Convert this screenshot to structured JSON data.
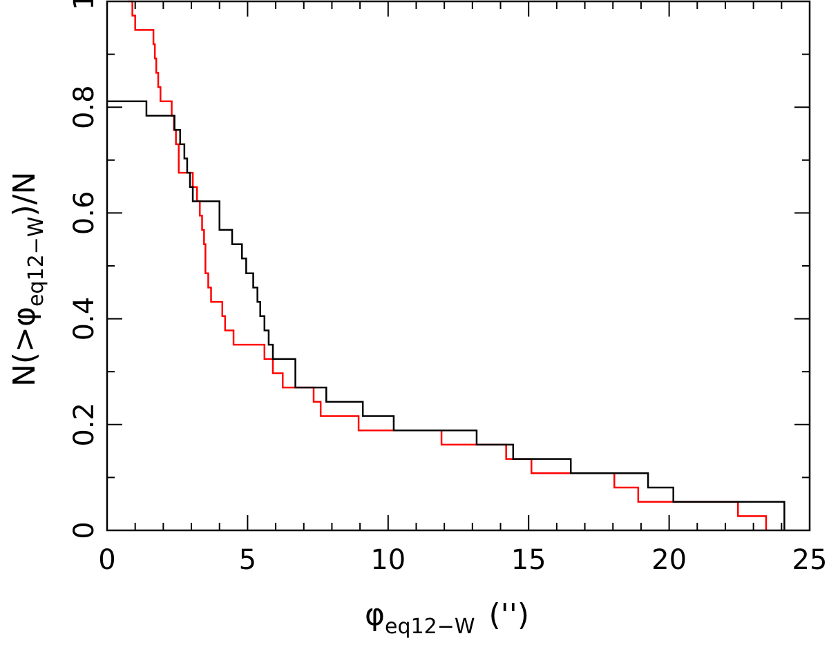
{
  "chart_data": {
    "type": "line",
    "step": true,
    "xlabel_main": "φ",
    "xlabel_sub": "eq12−W",
    "xlabel_unit": "('')",
    "ylabel_prefix": "N(>φ",
    "ylabel_sub": "eq12−W",
    "ylabel_suffix": ")/N",
    "xlim": [
      0,
      25
    ],
    "ylim": [
      0,
      1
    ],
    "xticks_major": [
      0,
      5,
      10,
      15,
      20,
      25
    ],
    "xtick_labels": [
      "0",
      "5",
      "10",
      "15",
      "20",
      "25"
    ],
    "xticks_minor": [
      1,
      2,
      3,
      4,
      6,
      7,
      8,
      9,
      11,
      12,
      13,
      14,
      16,
      17,
      18,
      19,
      21,
      22,
      23,
      24
    ],
    "yticks_major": [
      0,
      0.2,
      0.4,
      0.6,
      0.8,
      1
    ],
    "ytick_labels": [
      "0",
      "0.2",
      "0.4",
      "0.6",
      "0.8",
      "1"
    ],
    "yticks_minor": [
      0.1,
      0.3,
      0.5,
      0.7,
      0.9
    ],
    "series": [
      {
        "color": "#ff0000",
        "x": [
          0.75,
          0.9,
          1.0,
          1.65,
          1.7,
          1.75,
          1.82,
          1.9,
          2.3,
          2.38,
          2.45,
          2.55,
          3.05,
          3.2,
          3.3,
          3.38,
          3.45,
          3.5,
          3.6,
          3.7,
          4.1,
          4.2,
          4.5,
          5.6,
          5.9,
          6.25,
          7.35,
          7.6,
          8.95,
          11.9,
          14.2,
          15.1,
          18.05,
          18.9,
          19.25,
          22.45,
          23.45
        ],
        "y": [
          1.0,
          0.973,
          0.946,
          0.919,
          0.892,
          0.865,
          0.838,
          0.811,
          0.784,
          0.757,
          0.73,
          0.676,
          0.649,
          0.622,
          0.595,
          0.568,
          0.541,
          0.486,
          0.459,
          0.432,
          0.405,
          0.378,
          0.351,
          0.324,
          0.297,
          0.27,
          0.243,
          0.216,
          0.189,
          0.162,
          0.135,
          0.108,
          0.081,
          0.054,
          0.054,
          0.027,
          0.0
        ]
      },
      {
        "color": "#000000",
        "x": [
          0.0,
          1.4,
          2.4,
          2.6,
          2.75,
          2.85,
          2.95,
          3.05,
          3.2,
          4.0,
          4.45,
          4.8,
          4.95,
          5.2,
          5.35,
          5.45,
          5.6,
          5.75,
          5.9,
          6.7,
          7.8,
          9.1,
          10.2,
          13.15,
          14.45,
          16.5,
          19.25,
          20.15,
          24.1
        ],
        "y": [
          0.811,
          0.784,
          0.757,
          0.73,
          0.703,
          0.676,
          0.649,
          0.622,
          0.622,
          0.568,
          0.541,
          0.514,
          0.486,
          0.459,
          0.432,
          0.405,
          0.378,
          0.351,
          0.324,
          0.27,
          0.243,
          0.216,
          0.189,
          0.162,
          0.135,
          0.108,
          0.081,
          0.054,
          0.027
        ]
      }
    ]
  }
}
